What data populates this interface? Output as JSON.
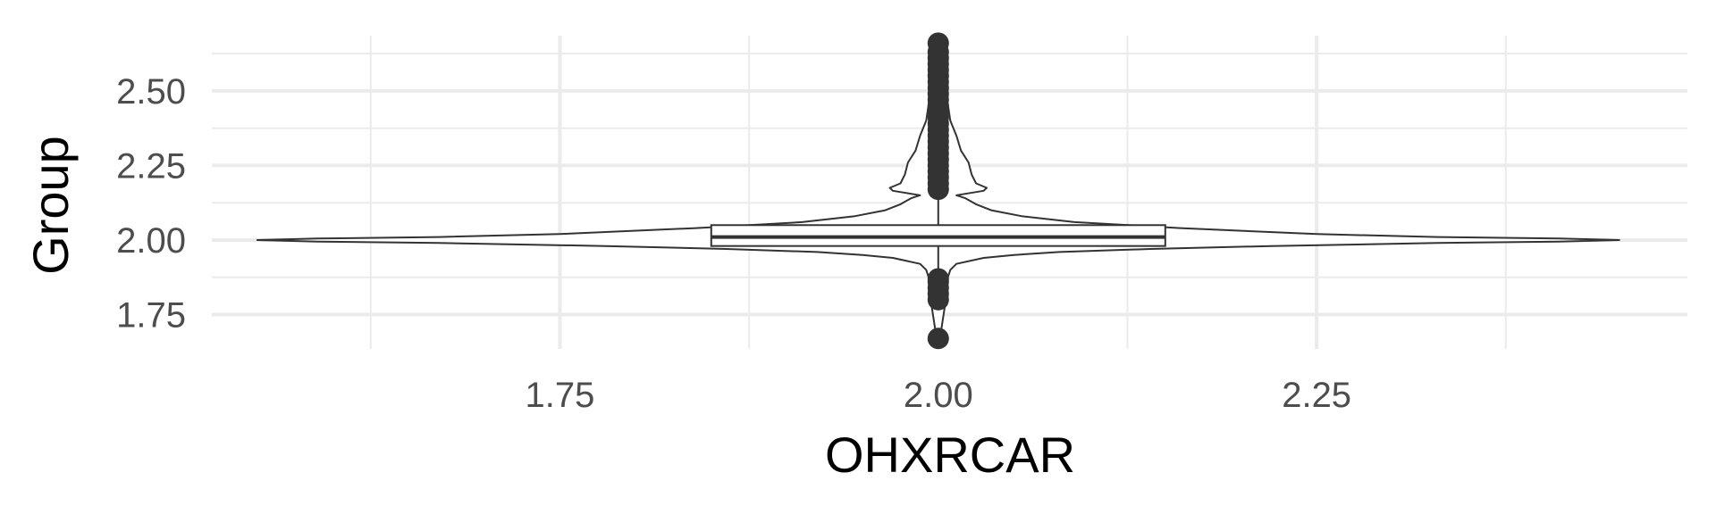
{
  "chart_data": {
    "type": "violin",
    "title": "",
    "xlabel": "OHXRCAR",
    "ylabel": "Group",
    "xlim": [
      1.52,
      2.495
    ],
    "ylim": [
      1.635,
      2.685
    ],
    "x_ticks": [
      1.75,
      2.0,
      2.25
    ],
    "x_tick_labels": [
      "1.75",
      "2.00",
      "2.25"
    ],
    "y_ticks": [
      1.75,
      2.0,
      2.25,
      2.5
    ],
    "y_tick_labels": [
      "1.75",
      "2.00",
      "2.25",
      "2.50"
    ],
    "grid": true,
    "legend": "none",
    "colors": {
      "outline": "#333333",
      "grid": "#ebebeb",
      "point": "#333333"
    },
    "violin": {
      "x": 2.0,
      "y_min": 1.67,
      "y_max": 2.66,
      "upper_profile": [
        [
          2.0,
          0.45
        ],
        [
          2.005,
          0.41
        ],
        [
          2.01,
          0.33
        ],
        [
          2.02,
          0.25
        ],
        [
          2.04,
          0.16
        ],
        [
          2.06,
          0.09
        ],
        [
          2.08,
          0.055
        ],
        [
          2.1,
          0.035
        ],
        [
          2.12,
          0.025
        ],
        [
          2.14,
          0.018
        ],
        [
          2.15,
          0.012
        ],
        [
          2.165,
          0.03
        ],
        [
          2.175,
          0.032
        ],
        [
          2.19,
          0.025
        ],
        [
          2.22,
          0.022
        ],
        [
          2.26,
          0.02
        ],
        [
          2.3,
          0.015
        ],
        [
          2.35,
          0.012
        ],
        [
          2.4,
          0.008
        ],
        [
          2.5,
          0.005
        ],
        [
          2.6,
          0.004
        ],
        [
          2.66,
          0.0
        ]
      ],
      "lower_profile": [
        [
          2.0,
          0.45
        ],
        [
          1.995,
          0.41
        ],
        [
          1.99,
          0.33
        ],
        [
          1.98,
          0.22
        ],
        [
          1.97,
          0.14
        ],
        [
          1.96,
          0.08
        ],
        [
          1.95,
          0.05
        ],
        [
          1.94,
          0.03
        ],
        [
          1.92,
          0.012
        ],
        [
          1.9,
          0.008
        ],
        [
          1.87,
          0.006
        ],
        [
          1.8,
          0.005
        ],
        [
          1.7,
          0.002
        ],
        [
          1.67,
          0.0
        ]
      ]
    },
    "boxplot": {
      "x": 2.0,
      "half_width": 0.15,
      "q1": 1.98,
      "median": 2.01,
      "q3": 2.05,
      "whisker_low": 1.88,
      "whisker_high": 2.17
    },
    "outliers": {
      "x": 2.0,
      "y": [
        1.67,
        1.8,
        1.82,
        1.84,
        1.86,
        1.87,
        2.17,
        2.19,
        2.21,
        2.23,
        2.25,
        2.27,
        2.29,
        2.31,
        2.33,
        2.35,
        2.37,
        2.39,
        2.41,
        2.43,
        2.45,
        2.47,
        2.49,
        2.51,
        2.53,
        2.55,
        2.57,
        2.59,
        2.61,
        2.63,
        2.66
      ]
    }
  }
}
